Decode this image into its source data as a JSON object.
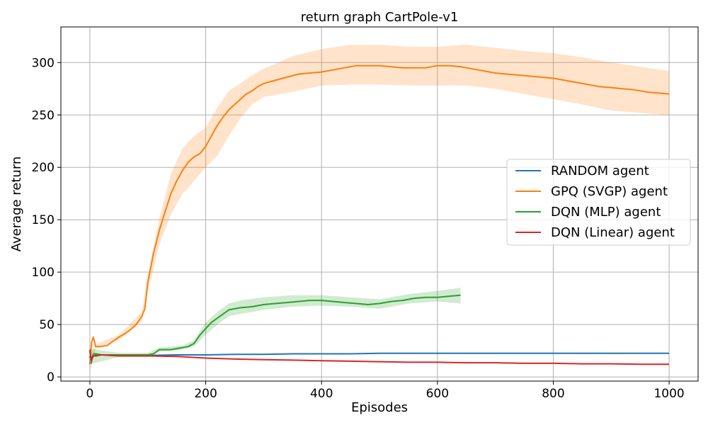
{
  "chart_data": {
    "type": "line",
    "title": "return graph CartPole-v1",
    "xlabel": "Episodes",
    "ylabel": "Average return",
    "xlim": [
      -50,
      1050
    ],
    "ylim": [
      -4,
      334
    ],
    "xticks": [
      0,
      200,
      400,
      600,
      800,
      1000
    ],
    "yticks": [
      0,
      50,
      100,
      150,
      200,
      250,
      300
    ],
    "grid": true,
    "legend_position": "center-right",
    "series": [
      {
        "name": "RANDOM agent",
        "color": "#1f77b4",
        "x": [
          0,
          2,
          5,
          10,
          20,
          50,
          100,
          150,
          200,
          250,
          300,
          350,
          400,
          450,
          500,
          550,
          600,
          650,
          700,
          750,
          800,
          850,
          900,
          950,
          1000
        ],
        "y": [
          20,
          13,
          19,
          21,
          21,
          21,
          20.5,
          21,
          21,
          21.5,
          21.5,
          22,
          22,
          22,
          22.5,
          22.5,
          22.5,
          22.5,
          22.5,
          22.5,
          22.5,
          22.5,
          22.5,
          22.5,
          22.5
        ]
      },
      {
        "name": "GPQ (SVGP) agent",
        "color": "#ff7f0e",
        "x": [
          0,
          3,
          6,
          10,
          20,
          30,
          40,
          50,
          60,
          70,
          80,
          90,
          95,
          100,
          110,
          120,
          130,
          140,
          150,
          160,
          170,
          180,
          190,
          200,
          210,
          220,
          230,
          240,
          250,
          260,
          270,
          280,
          290,
          300,
          320,
          340,
          360,
          380,
          400,
          420,
          440,
          460,
          480,
          500,
          520,
          540,
          560,
          580,
          600,
          620,
          640,
          660,
          680,
          700,
          720,
          740,
          760,
          780,
          800,
          820,
          840,
          860,
          880,
          900,
          920,
          940,
          960,
          980,
          1000
        ],
        "y": [
          12,
          33,
          38,
          29,
          29,
          30,
          34,
          38,
          41,
          45,
          50,
          58,
          65,
          90,
          118,
          140,
          158,
          175,
          187,
          197,
          205,
          210,
          213,
          220,
          230,
          240,
          248,
          255,
          260,
          265,
          270,
          273,
          277,
          280,
          283,
          286,
          289,
          290,
          291,
          293,
          295,
          297,
          297,
          297,
          296,
          295,
          295,
          295,
          297,
          297,
          296,
          294,
          292,
          290,
          289,
          288,
          287,
          286,
          285,
          283,
          281,
          279,
          277,
          276,
          275,
          274,
          272,
          271,
          270
        ],
        "band_x": [
          0,
          10,
          50,
          90,
          100,
          120,
          140,
          160,
          180,
          200,
          220,
          240,
          260,
          280,
          300,
          350,
          400,
          450,
          500,
          550,
          600,
          650,
          700,
          750,
          800,
          850,
          900,
          950,
          1000
        ],
        "band_upper": [
          20,
          31,
          40,
          62,
          97,
          151,
          194,
          218,
          230,
          238,
          257,
          273,
          280,
          288,
          294,
          306,
          313,
          317,
          317,
          315,
          315,
          317,
          314,
          311,
          309,
          305,
          300,
          296,
          292
        ],
        "band_lower": [
          5,
          27,
          35,
          53,
          81,
          126,
          155,
          175,
          187,
          200,
          211,
          230,
          247,
          260,
          267,
          272,
          278,
          279,
          279,
          278,
          278,
          278,
          275,
          270,
          265,
          260,
          254,
          252,
          250
        ]
      },
      {
        "name": "DQN (MLP) agent",
        "color": "#2ca02c",
        "x": [
          0,
          3,
          6,
          10,
          20,
          50,
          80,
          100,
          110,
          120,
          140,
          160,
          170,
          180,
          190,
          200,
          210,
          220,
          230,
          240,
          260,
          280,
          300,
          320,
          340,
          360,
          380,
          400,
          420,
          440,
          460,
          480,
          500,
          520,
          540,
          560,
          580,
          600,
          620,
          640
        ],
        "y": [
          25,
          15,
          22,
          22,
          21,
          21,
          21,
          21,
          22,
          26,
          26,
          28,
          29,
          32,
          40,
          46,
          52,
          56,
          60,
          64,
          66,
          67,
          69,
          70,
          71,
          72,
          73,
          73,
          72,
          71,
          70,
          69,
          70,
          72,
          73,
          75,
          76,
          76,
          77,
          78
        ],
        "band_x": [
          0,
          50,
          100,
          120,
          160,
          180,
          200,
          220,
          240,
          260,
          300,
          350,
          400,
          450,
          500,
          550,
          600,
          640
        ],
        "band_upper": [
          27,
          23,
          23,
          28,
          30,
          35,
          52,
          62,
          70,
          73,
          76,
          78,
          78,
          76,
          74,
          79,
          82,
          85
        ],
        "band_lower": [
          12,
          19,
          19,
          24,
          26,
          29,
          40,
          50,
          58,
          60,
          64,
          67,
          68,
          67,
          65,
          70,
          72,
          70
        ]
      },
      {
        "name": "DQN (Linear) agent",
        "color": "#d62728",
        "x": [
          0,
          2,
          5,
          10,
          20,
          50,
          100,
          150,
          200,
          250,
          300,
          350,
          400,
          450,
          500,
          550,
          600,
          650,
          700,
          750,
          800,
          850,
          900,
          950,
          1000
        ],
        "y": [
          26,
          16,
          20,
          20,
          21,
          20,
          20,
          19.5,
          18,
          17,
          16.5,
          16,
          15.5,
          15,
          14.5,
          14,
          14,
          13.5,
          13.5,
          13,
          13,
          12.5,
          12.5,
          12,
          12
        ]
      }
    ]
  }
}
